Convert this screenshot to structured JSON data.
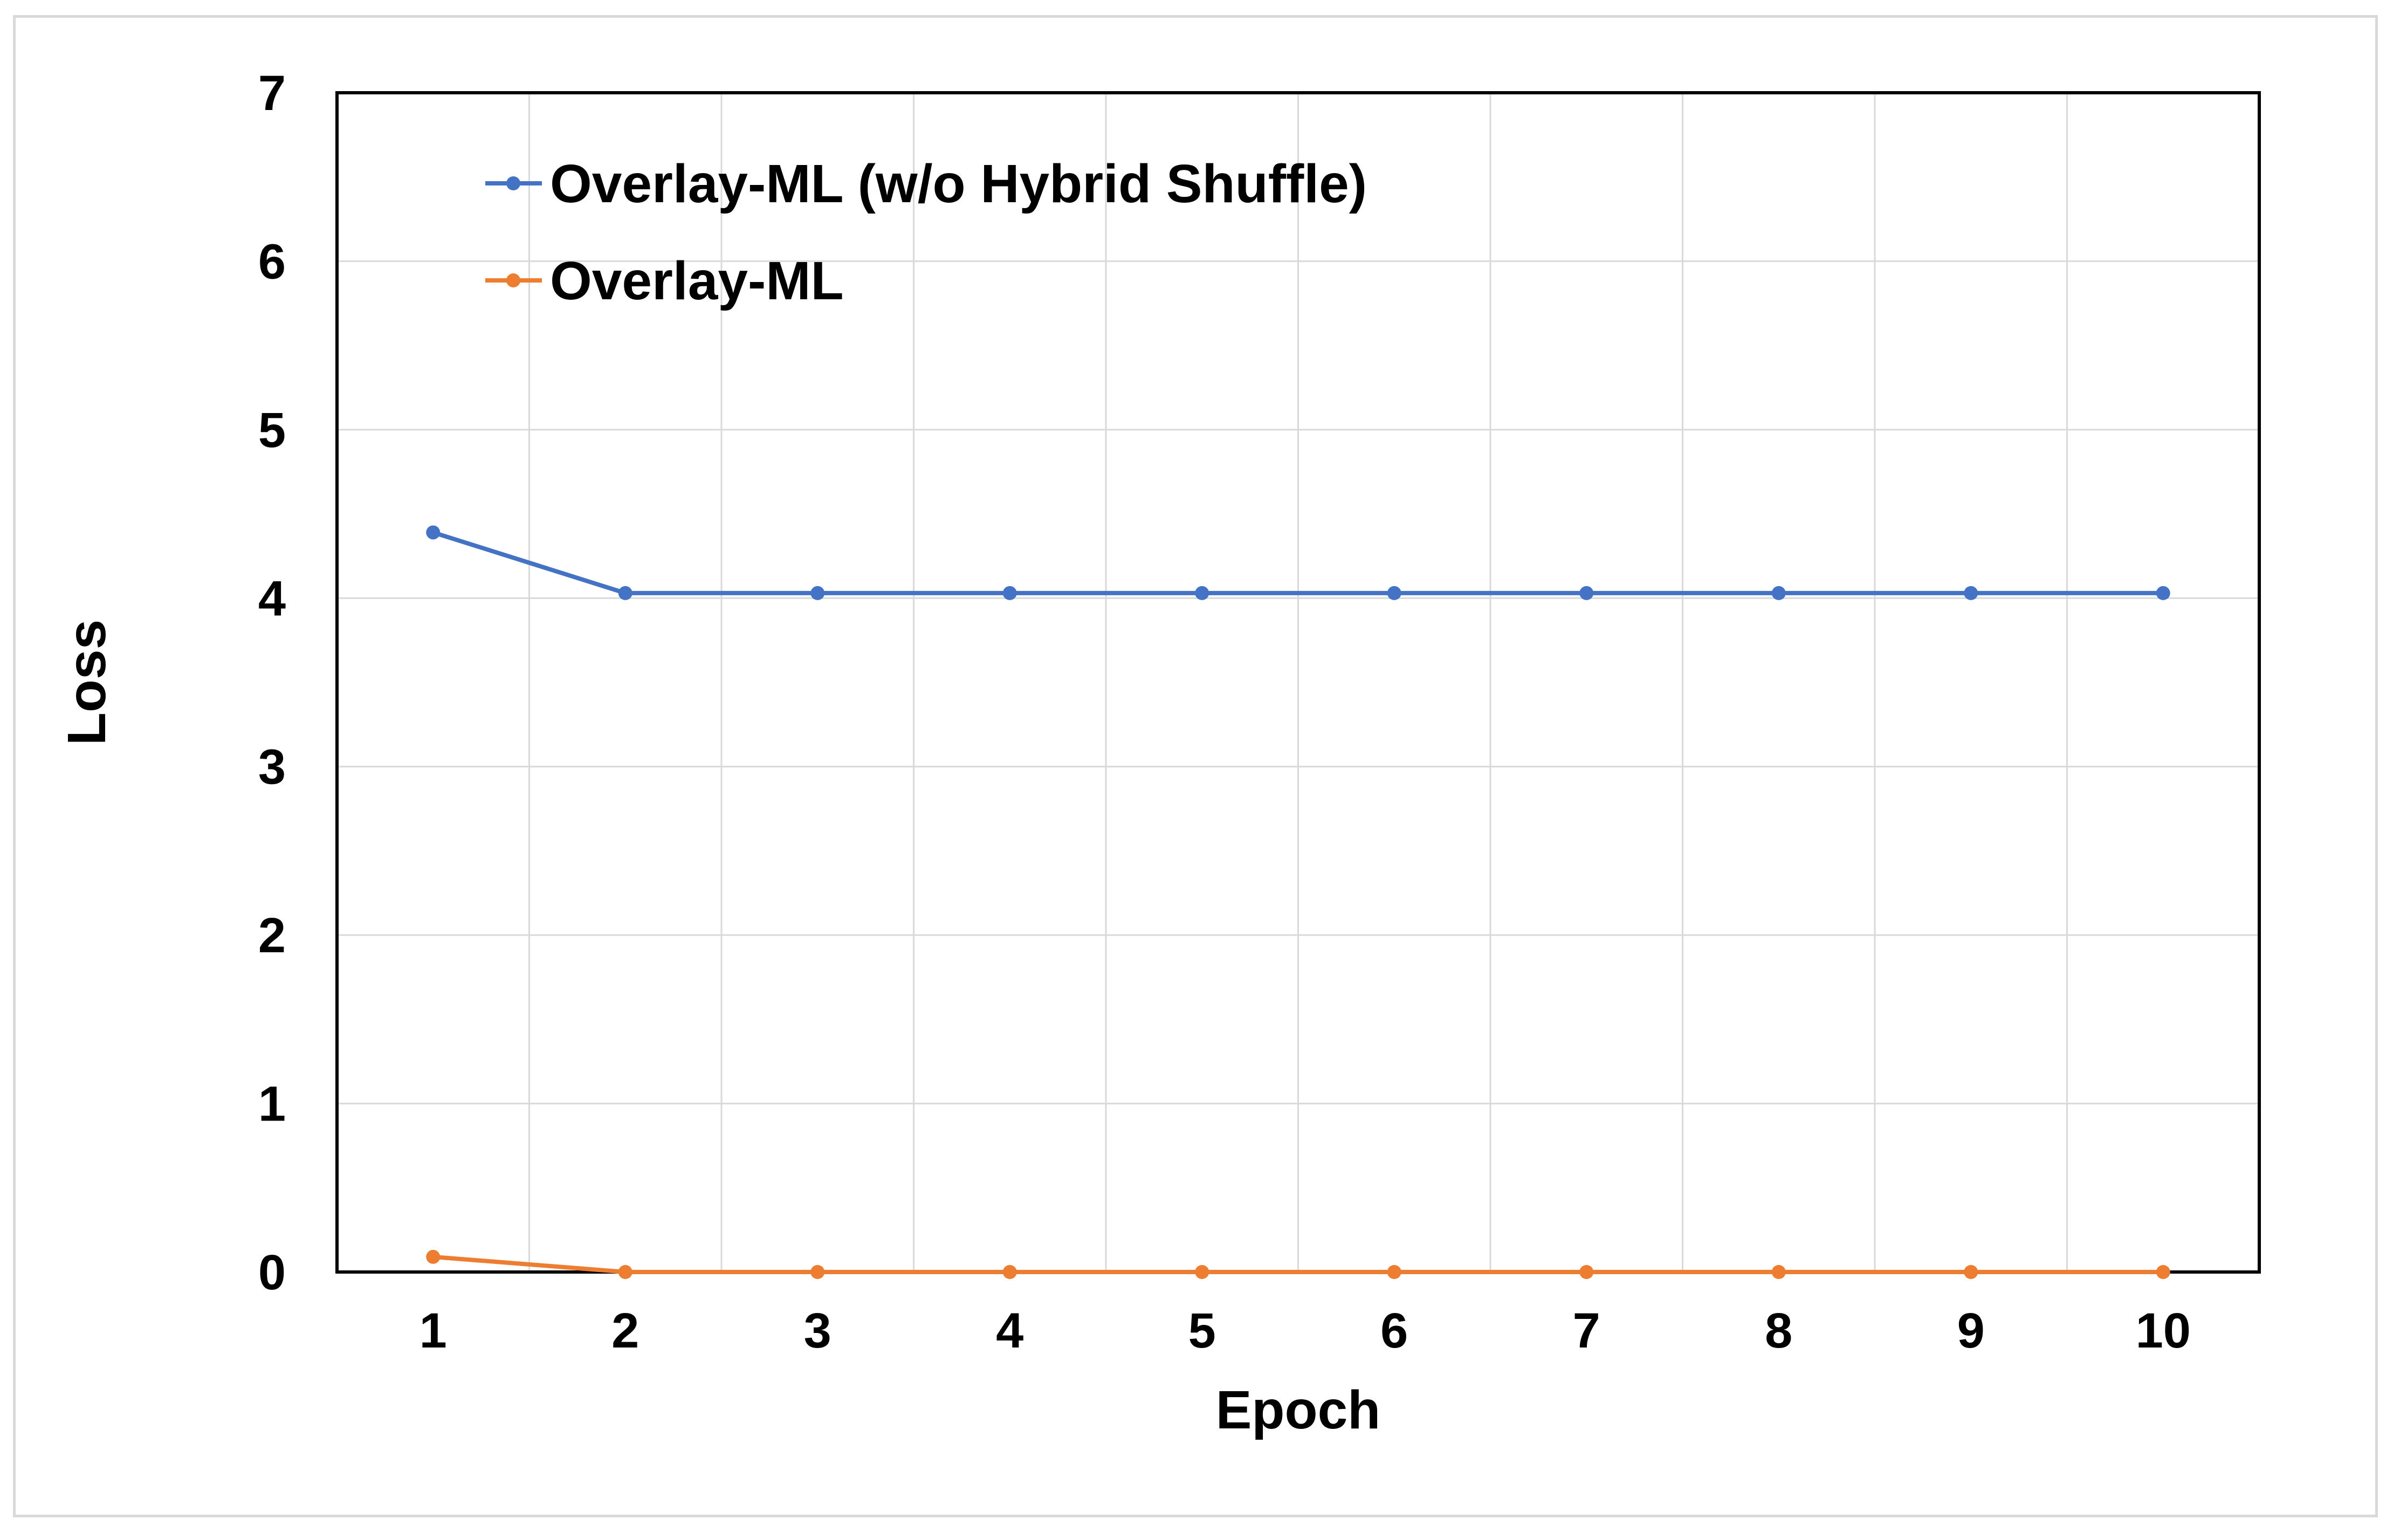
{
  "chart_data": {
    "type": "line",
    "title": "",
    "xlabel": "Epoch",
    "ylabel": "Loss",
    "x": [
      1,
      2,
      3,
      4,
      5,
      6,
      7,
      8,
      9,
      10
    ],
    "x_tick_labels": [
      "1",
      "2",
      "3",
      "4",
      "5",
      "6",
      "7",
      "8",
      "9",
      "10"
    ],
    "y_ticks": [
      0,
      1,
      2,
      3,
      4,
      5,
      6,
      7
    ],
    "y_tick_labels": [
      "0",
      "1",
      "2",
      "3",
      "4",
      "5",
      "6",
      "7"
    ],
    "ylim": [
      0,
      7
    ],
    "grid": true,
    "legend_position": "top-left",
    "series": [
      {
        "name": "Overlay-ML (w/o Hybrid Shuffle)",
        "color": "#4472c4",
        "marker": "circle",
        "values": [
          4.39,
          4.03,
          4.03,
          4.03,
          4.03,
          4.03,
          4.03,
          4.03,
          4.03,
          4.03
        ]
      },
      {
        "name": "Overlay-ML",
        "color": "#ed7d31",
        "marker": "circle",
        "values": [
          0.09,
          0.0,
          0.0,
          0.0,
          0.0,
          0.0,
          0.0,
          0.0,
          0.0,
          0.0
        ]
      }
    ]
  }
}
